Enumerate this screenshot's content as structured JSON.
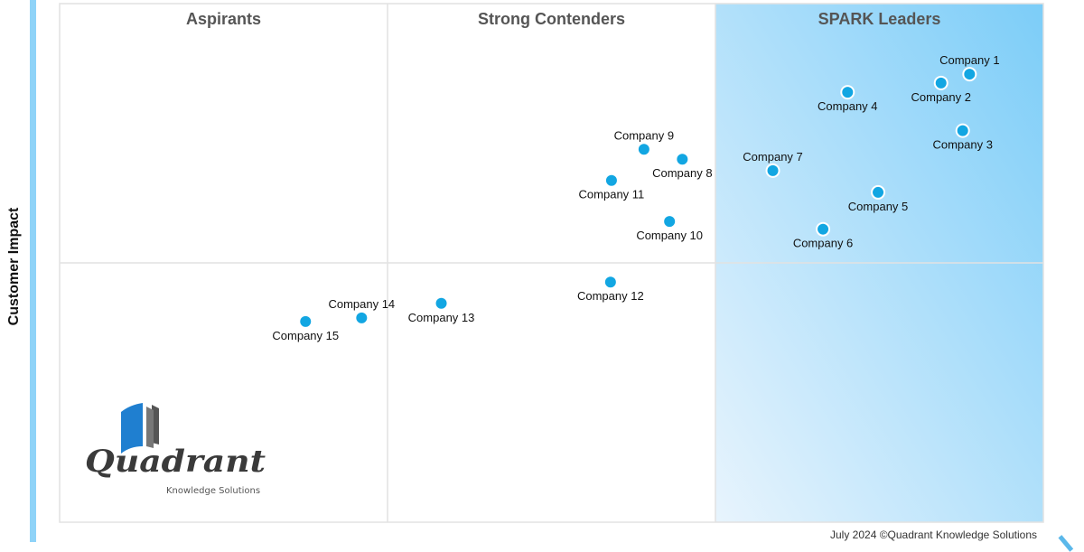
{
  "chart_data": {
    "type": "scatter",
    "title": "",
    "xlabel": "",
    "ylabel": "Customer Impact",
    "xlim": [
      0,
      100
    ],
    "ylim": [
      0,
      100
    ],
    "grid": "quadrant dividers",
    "quadrants": [
      "Aspirants",
      "Strong Contenders",
      "SPARK Leaders"
    ],
    "point_color": "#12a6e2",
    "leader_gradient": [
      "#7ccdf8",
      "#e8f4fd"
    ],
    "points": [
      {
        "name": "Company 1",
        "x": 92.5,
        "y": 86.4,
        "label": "above"
      },
      {
        "name": "Company 2",
        "x": 89.6,
        "y": 84.7,
        "label": "below"
      },
      {
        "name": "Company 3",
        "x": 91.8,
        "y": 75.5,
        "label": "below"
      },
      {
        "name": "Company 4",
        "x": 80.1,
        "y": 82.9,
        "label": "below"
      },
      {
        "name": "Company 5",
        "x": 83.2,
        "y": 63.6,
        "label": "below"
      },
      {
        "name": "Company 6",
        "x": 77.6,
        "y": 56.5,
        "label": "below"
      },
      {
        "name": "Company 7",
        "x": 72.5,
        "y": 67.8,
        "label": "above"
      },
      {
        "name": "Company 8",
        "x": 63.3,
        "y": 70.0,
        "label": "below"
      },
      {
        "name": "Company 9",
        "x": 59.4,
        "y": 71.9,
        "label": "above"
      },
      {
        "name": "Company 10",
        "x": 62.0,
        "y": 58.0,
        "label": "below"
      },
      {
        "name": "Company 11",
        "x": 56.1,
        "y": 65.9,
        "label": "below"
      },
      {
        "name": "Company 12",
        "x": 56.0,
        "y": 46.3,
        "label": "below"
      },
      {
        "name": "Company 13",
        "x": 38.8,
        "y": 42.2,
        "label": "below"
      },
      {
        "name": "Company 14",
        "x": 30.7,
        "y": 39.4,
        "label": "above"
      },
      {
        "name": "Company 15",
        "x": 25.0,
        "y": 38.7,
        "label": "below"
      }
    ]
  },
  "logo": {
    "name": "Quadrant",
    "tagline": "Knowledge Solutions"
  },
  "footer": "July 2024 ©Quadrant Knowledge Solutions"
}
